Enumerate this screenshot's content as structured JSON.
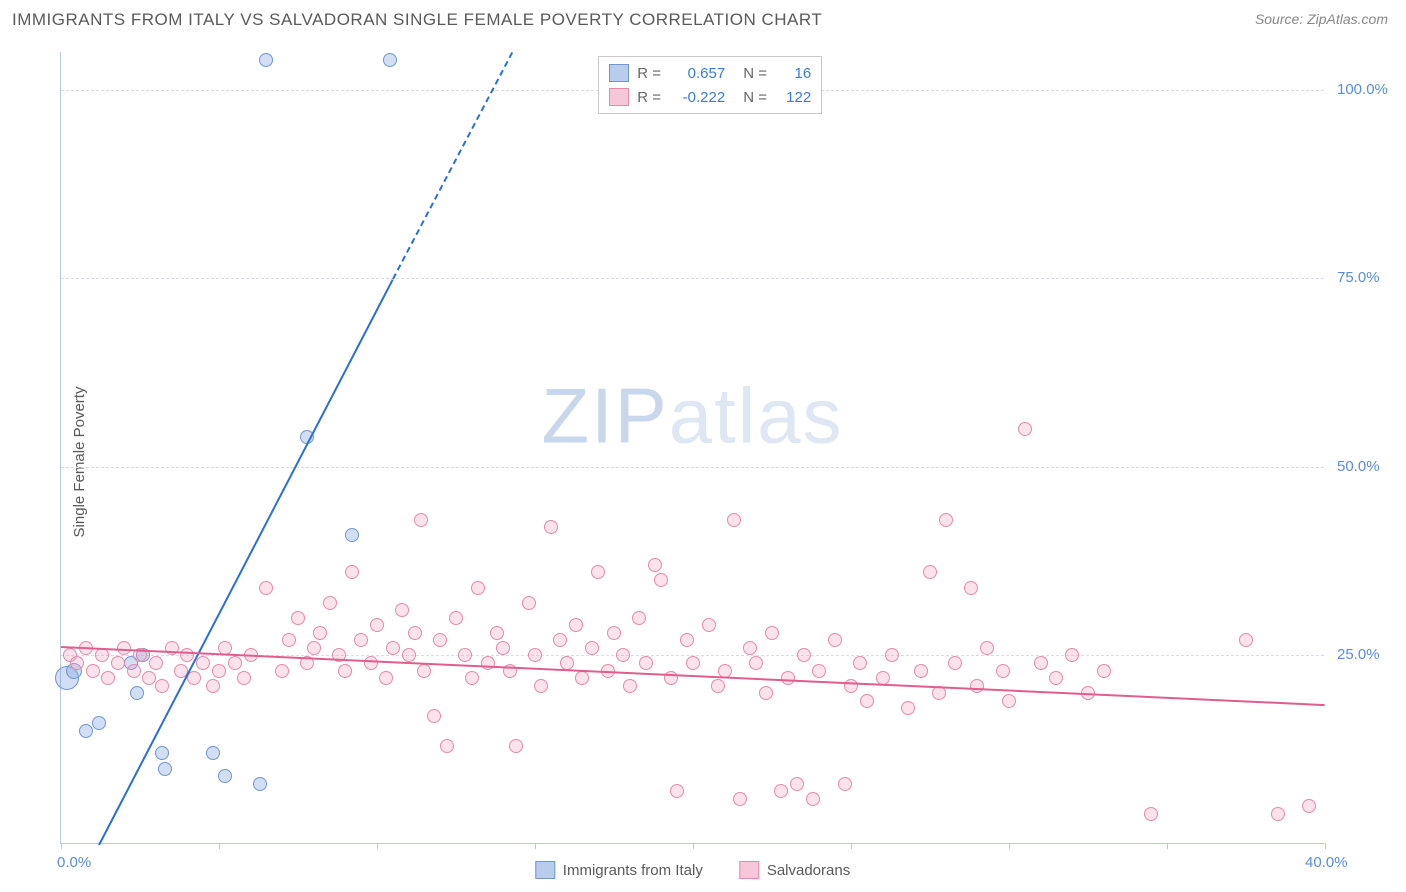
{
  "header": {
    "title": "IMMIGRANTS FROM ITALY VS SALVADORAN SINGLE FEMALE POVERTY CORRELATION CHART",
    "source_prefix": "Source: ",
    "source": "ZipAtlas.com"
  },
  "watermark": {
    "part1": "ZIP",
    "part2": "atlas"
  },
  "chart": {
    "type": "scatter",
    "ylabel": "Single Female Poverty",
    "xlim": [
      0,
      40
    ],
    "ylim": [
      0,
      105
    ],
    "xtick_step": 5,
    "xtick_labels": {
      "0": "0.0%",
      "40": "40.0%"
    },
    "ytick_values": [
      25,
      50,
      75,
      100
    ],
    "ytick_labels": [
      "25.0%",
      "50.0%",
      "75.0%",
      "100.0%"
    ],
    "grid_color": "#d7dbe3",
    "axis_color": "#b9c7e4",
    "tick_label_color": "#5b8dd6",
    "background_color": "#ffffff",
    "watermark_color": "#dfe7f3",
    "marker_radius": 7,
    "marker_stroke_width": 1.2,
    "series": [
      {
        "name": "Immigrants from Italy",
        "color_fill": "rgba(122,160,220,0.35)",
        "color_stroke": "#6f97d2",
        "swatch_fill": "#b8cdec",
        "swatch_stroke": "#6f97d2",
        "R": "0.657",
        "N": "16",
        "stat_color": "#3b7bd1",
        "trend": {
          "x1": 1.2,
          "y1": 0,
          "x2": 10.5,
          "y2": 75,
          "color": "#2a6fd6",
          "width": 2,
          "dash_x2": 15.4,
          "dash_y2": 114
        },
        "points": [
          {
            "x": 0.2,
            "y": 22,
            "r": 12
          },
          {
            "x": 0.4,
            "y": 23,
            "r": 8
          },
          {
            "x": 0.8,
            "y": 15
          },
          {
            "x": 1.2,
            "y": 16
          },
          {
            "x": 2.2,
            "y": 24
          },
          {
            "x": 2.4,
            "y": 20
          },
          {
            "x": 2.6,
            "y": 25
          },
          {
            "x": 3.2,
            "y": 12
          },
          {
            "x": 3.3,
            "y": 10
          },
          {
            "x": 4.8,
            "y": 12
          },
          {
            "x": 5.2,
            "y": 9
          },
          {
            "x": 6.3,
            "y": 8
          },
          {
            "x": 6.5,
            "y": 104
          },
          {
            "x": 7.8,
            "y": 54
          },
          {
            "x": 9.2,
            "y": 41
          },
          {
            "x": 10.4,
            "y": 104
          }
        ]
      },
      {
        "name": "Salvadorans",
        "color_fill": "rgba(242,160,188,0.30)",
        "color_stroke": "#e889aa",
        "swatch_fill": "#f6c7d8",
        "swatch_stroke": "#e889aa",
        "R": "-0.222",
        "N": "122",
        "stat_color": "#3b7bd1",
        "trend": {
          "x1": 0,
          "y1": 26.2,
          "x2": 40,
          "y2": 18.5,
          "color": "#e05e8d",
          "width": 2
        },
        "points": [
          {
            "x": 0.3,
            "y": 25
          },
          {
            "x": 0.5,
            "y": 24
          },
          {
            "x": 0.8,
            "y": 26
          },
          {
            "x": 1.0,
            "y": 23
          },
          {
            "x": 1.3,
            "y": 25
          },
          {
            "x": 1.5,
            "y": 22
          },
          {
            "x": 1.8,
            "y": 24
          },
          {
            "x": 2.0,
            "y": 26
          },
          {
            "x": 2.3,
            "y": 23
          },
          {
            "x": 2.5,
            "y": 25
          },
          {
            "x": 2.8,
            "y": 22
          },
          {
            "x": 3.0,
            "y": 24
          },
          {
            "x": 3.2,
            "y": 21
          },
          {
            "x": 3.5,
            "y": 26
          },
          {
            "x": 3.8,
            "y": 23
          },
          {
            "x": 4.0,
            "y": 25
          },
          {
            "x": 4.2,
            "y": 22
          },
          {
            "x": 4.5,
            "y": 24
          },
          {
            "x": 4.8,
            "y": 21
          },
          {
            "x": 5.0,
            "y": 23
          },
          {
            "x": 5.2,
            "y": 26
          },
          {
            "x": 5.5,
            "y": 24
          },
          {
            "x": 5.8,
            "y": 22
          },
          {
            "x": 6.0,
            "y": 25
          },
          {
            "x": 6.5,
            "y": 34
          },
          {
            "x": 7.0,
            "y": 23
          },
          {
            "x": 7.2,
            "y": 27
          },
          {
            "x": 7.5,
            "y": 30
          },
          {
            "x": 7.8,
            "y": 24
          },
          {
            "x": 8.0,
            "y": 26
          },
          {
            "x": 8.2,
            "y": 28
          },
          {
            "x": 8.5,
            "y": 32
          },
          {
            "x": 8.8,
            "y": 25
          },
          {
            "x": 9.0,
            "y": 23
          },
          {
            "x": 9.2,
            "y": 36
          },
          {
            "x": 9.5,
            "y": 27
          },
          {
            "x": 9.8,
            "y": 24
          },
          {
            "x": 10.0,
            "y": 29
          },
          {
            "x": 10.3,
            "y": 22
          },
          {
            "x": 10.5,
            "y": 26
          },
          {
            "x": 10.8,
            "y": 31
          },
          {
            "x": 11.0,
            "y": 25
          },
          {
            "x": 11.2,
            "y": 28
          },
          {
            "x": 11.4,
            "y": 43
          },
          {
            "x": 11.5,
            "y": 23
          },
          {
            "x": 11.8,
            "y": 17
          },
          {
            "x": 12.0,
            "y": 27
          },
          {
            "x": 12.2,
            "y": 13
          },
          {
            "x": 12.5,
            "y": 30
          },
          {
            "x": 12.8,
            "y": 25
          },
          {
            "x": 13.0,
            "y": 22
          },
          {
            "x": 13.2,
            "y": 34
          },
          {
            "x": 13.5,
            "y": 24
          },
          {
            "x": 13.8,
            "y": 28
          },
          {
            "x": 14.0,
            "y": 26
          },
          {
            "x": 14.2,
            "y": 23
          },
          {
            "x": 14.4,
            "y": 13
          },
          {
            "x": 14.8,
            "y": 32
          },
          {
            "x": 15.0,
            "y": 25
          },
          {
            "x": 15.2,
            "y": 21
          },
          {
            "x": 15.5,
            "y": 42
          },
          {
            "x": 15.8,
            "y": 27
          },
          {
            "x": 16.0,
            "y": 24
          },
          {
            "x": 16.3,
            "y": 29
          },
          {
            "x": 16.5,
            "y": 22
          },
          {
            "x": 16.8,
            "y": 26
          },
          {
            "x": 17.0,
            "y": 36
          },
          {
            "x": 17.3,
            "y": 23
          },
          {
            "x": 17.5,
            "y": 28
          },
          {
            "x": 17.8,
            "y": 25
          },
          {
            "x": 18.0,
            "y": 21
          },
          {
            "x": 18.3,
            "y": 30
          },
          {
            "x": 18.5,
            "y": 24
          },
          {
            "x": 18.8,
            "y": 37
          },
          {
            "x": 19.0,
            "y": 35
          },
          {
            "x": 19.3,
            "y": 22
          },
          {
            "x": 19.5,
            "y": 7
          },
          {
            "x": 19.8,
            "y": 27
          },
          {
            "x": 20.0,
            "y": 24
          },
          {
            "x": 20.5,
            "y": 29
          },
          {
            "x": 20.8,
            "y": 21
          },
          {
            "x": 21.0,
            "y": 23
          },
          {
            "x": 21.3,
            "y": 43
          },
          {
            "x": 21.5,
            "y": 6
          },
          {
            "x": 21.8,
            "y": 26
          },
          {
            "x": 22.0,
            "y": 24
          },
          {
            "x": 22.3,
            "y": 20
          },
          {
            "x": 22.5,
            "y": 28
          },
          {
            "x": 22.8,
            "y": 7
          },
          {
            "x": 23.0,
            "y": 22
          },
          {
            "x": 23.3,
            "y": 8
          },
          {
            "x": 23.5,
            "y": 25
          },
          {
            "x": 23.8,
            "y": 6
          },
          {
            "x": 24.0,
            "y": 23
          },
          {
            "x": 24.5,
            "y": 27
          },
          {
            "x": 24.8,
            "y": 8
          },
          {
            "x": 25.0,
            "y": 21
          },
          {
            "x": 25.3,
            "y": 24
          },
          {
            "x": 25.5,
            "y": 19
          },
          {
            "x": 26.0,
            "y": 22
          },
          {
            "x": 26.3,
            "y": 25
          },
          {
            "x": 26.8,
            "y": 18
          },
          {
            "x": 27.2,
            "y": 23
          },
          {
            "x": 27.5,
            "y": 36
          },
          {
            "x": 27.8,
            "y": 20
          },
          {
            "x": 28.0,
            "y": 43
          },
          {
            "x": 28.3,
            "y": 24
          },
          {
            "x": 28.8,
            "y": 34
          },
          {
            "x": 29.0,
            "y": 21
          },
          {
            "x": 29.3,
            "y": 26
          },
          {
            "x": 29.8,
            "y": 23
          },
          {
            "x": 30.0,
            "y": 19
          },
          {
            "x": 30.5,
            "y": 55
          },
          {
            "x": 31.0,
            "y": 24
          },
          {
            "x": 31.5,
            "y": 22
          },
          {
            "x": 32.0,
            "y": 25
          },
          {
            "x": 32.5,
            "y": 20
          },
          {
            "x": 33.0,
            "y": 23
          },
          {
            "x": 34.5,
            "y": 4
          },
          {
            "x": 37.5,
            "y": 27
          },
          {
            "x": 38.5,
            "y": 4
          },
          {
            "x": 39.5,
            "y": 5
          }
        ]
      }
    ]
  },
  "legend_labels": {
    "R": "R =",
    "N": "N ="
  }
}
